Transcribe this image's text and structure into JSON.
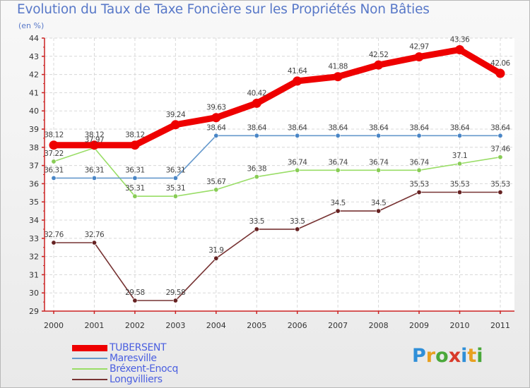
{
  "header": {
    "title": "Evolution du Taux de Taxe Foncière sur les Propriétés Non Bâties",
    "unit": "(en %)"
  },
  "brand": {
    "letters": [
      "P",
      "r",
      "o",
      "x",
      "i",
      "t",
      "i"
    ],
    "colors": [
      "#2f8fd8",
      "#e8a020",
      "#4aa83a",
      "#d83a2a",
      "#2f8fd8",
      "#e8a020",
      "#4aa83a"
    ]
  },
  "chart_data": {
    "type": "line",
    "title": "Evolution du Taux de Taxe Foncière sur les Propriétés Non Bâties",
    "ylabel": "(en %)",
    "xlabel": "",
    "x": [
      "2000",
      "2001",
      "2002",
      "2003",
      "2004",
      "2005",
      "2006",
      "2007",
      "2008",
      "2009",
      "2010",
      "2011"
    ],
    "ylim": [
      29,
      44
    ],
    "yticks": [
      "29",
      "30",
      "31",
      "32",
      "33",
      "34",
      "35",
      "36",
      "37",
      "38",
      "39",
      "40",
      "41",
      "42",
      "43",
      "44"
    ],
    "grid": true,
    "series": [
      {
        "name": "TUBERSENT",
        "color": "#ee0000",
        "values": [
          38.12,
          38.12,
          38.12,
          39.24,
          39.63,
          40.42,
          41.64,
          41.88,
          42.52,
          42.97,
          43.36,
          42.06
        ],
        "labels": [
          "38.12",
          "38.12",
          "38.12",
          "39.24",
          "39.63",
          "40.42",
          "41.64",
          "41.88",
          "42.52",
          "42.97",
          "43.36",
          "42.06"
        ]
      },
      {
        "name": "Maresville",
        "color": "#6699cc",
        "values": [
          36.31,
          36.31,
          36.31,
          36.31,
          38.64,
          38.64,
          38.64,
          38.64,
          38.64,
          38.64,
          38.64,
          38.64
        ],
        "labels": [
          "36.31",
          "36.31",
          "36.31",
          "36.31",
          "38.64",
          "38.64",
          "38.64",
          "38.64",
          "38.64",
          "38.64",
          "38.64",
          "38.64"
        ]
      },
      {
        "name": "Bréxent-Enocq",
        "color": "#99dd66",
        "values": [
          37.22,
          37.97,
          35.31,
          35.31,
          35.67,
          36.38,
          36.74,
          36.74,
          36.74,
          36.74,
          37.1,
          37.46
        ],
        "labels": [
          "37.22",
          "37.97",
          "35.31",
          "35.31",
          "35.67",
          "36.38",
          "36.74",
          "36.74",
          "36.74",
          "36.74",
          "37.1",
          "37.46"
        ]
      },
      {
        "name": "Longvilliers",
        "color": "#773333",
        "values": [
          32.76,
          32.76,
          29.58,
          29.58,
          31.9,
          33.5,
          33.5,
          34.5,
          34.5,
          35.53,
          35.53,
          35.53
        ],
        "labels": [
          "32.76",
          "32.76",
          "29.58",
          "29.58",
          "31.9",
          "33.5",
          "33.5",
          "34.5",
          "34.5",
          "35.53",
          "35.53",
          "35.53"
        ]
      }
    ],
    "legend_position": "bottom-left"
  }
}
